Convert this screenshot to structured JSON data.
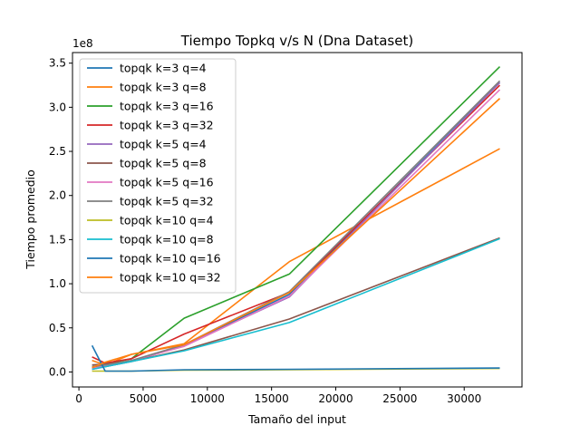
{
  "chart_data": {
    "type": "line",
    "title": "Tiempo Topkq v/s N (Dna Dataset)",
    "xlabel": "Tamaño del input",
    "ylabel": "Tiempo promedio",
    "y_offset_label": "1e8",
    "y_scale_factor": 100000000,
    "xlim": [
      -500,
      34500
    ],
    "ylim": [
      -17000000,
      362000000
    ],
    "xticks": [
      0,
      5000,
      10000,
      15000,
      20000,
      25000,
      30000
    ],
    "yticks": [
      0,
      50000000,
      100000000,
      150000000,
      200000000,
      250000000,
      300000000,
      350000000
    ],
    "ytick_labels": [
      "0.0",
      "0.5",
      "1.0",
      "1.5",
      "2.0",
      "2.5",
      "3.0",
      "3.5"
    ],
    "legend_position": "upper-left",
    "grid": false,
    "x": [
      1024,
      2048,
      4096,
      8192,
      16384,
      32768
    ],
    "series": [
      {
        "name": "topqk k=3 q=4",
        "color": "#1f77b4",
        "values": [
          4000000,
          6000000,
          12000000,
          30000000,
          88000000,
          328000000
        ]
      },
      {
        "name": "topqk k=3 q=8",
        "color": "#ff7f0e",
        "values": [
          13000000,
          8000000,
          20000000,
          32000000,
          125000000,
          253000000
        ]
      },
      {
        "name": "topqk k=3 q=16",
        "color": "#2ca02c",
        "values": [
          5000000,
          9000000,
          15000000,
          61000000,
          111000000,
          346000000
        ]
      },
      {
        "name": "topqk k=3 q=32",
        "color": "#d62728",
        "values": [
          17000000,
          10000000,
          15000000,
          43000000,
          90000000,
          325000000
        ]
      },
      {
        "name": "topqk k=5 q=4",
        "color": "#9467bd",
        "values": [
          3000000,
          6000000,
          12000000,
          30000000,
          85000000,
          328000000
        ]
      },
      {
        "name": "topqk k=5 q=8",
        "color": "#8c564b",
        "values": [
          8000000,
          9000000,
          12000000,
          25000000,
          60000000,
          152000000
        ]
      },
      {
        "name": "topqk k=5 q=16",
        "color": "#e377c2",
        "values": [
          4000000,
          7000000,
          13000000,
          29000000,
          86000000,
          320000000
        ]
      },
      {
        "name": "topqk k=5 q=32",
        "color": "#7f7f7f",
        "values": [
          6000000,
          8000000,
          13000000,
          31000000,
          91000000,
          330000000
        ]
      },
      {
        "name": "topqk k=10 q=4",
        "color": "#bcbd22",
        "values": [
          1000000,
          1000000,
          1000000,
          2000000,
          2500000,
          4000000
        ]
      },
      {
        "name": "topqk k=10 q=8",
        "color": "#17becf",
        "values": [
          3000000,
          6000000,
          12000000,
          24000000,
          56000000,
          151000000
        ]
      },
      {
        "name": "topqk k=10 q=16",
        "color": "#1f77b4",
        "values": [
          30000000,
          1000000,
          1000000,
          2500000,
          3000000,
          4500000
        ]
      },
      {
        "name": "topqk k=10 q=32",
        "color": "#ff7f0e",
        "values": [
          5000000,
          11000000,
          20000000,
          31000000,
          90000000,
          310000000
        ]
      }
    ]
  }
}
